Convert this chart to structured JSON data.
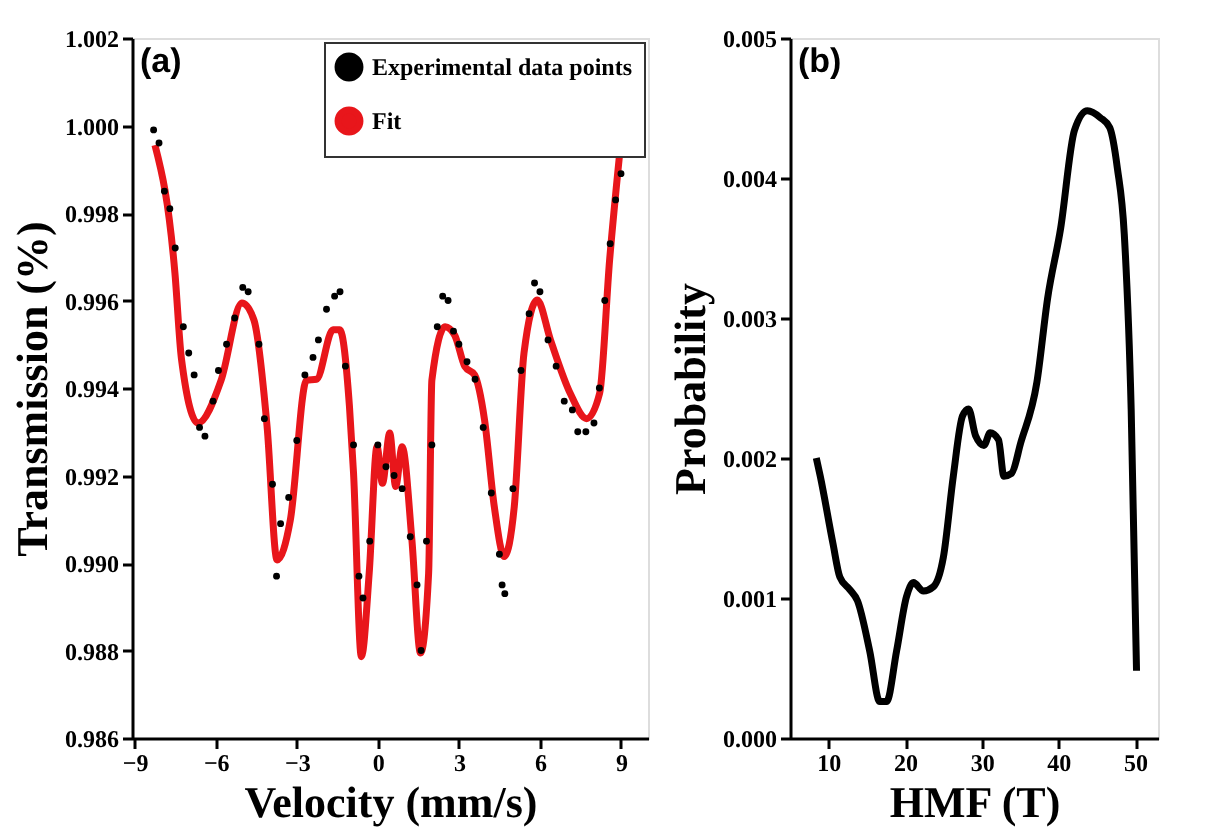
{
  "chart_data": [
    {
      "type": "line",
      "xlabel": "Velocity (mm/s)",
      "ylabel": "Transmission (%)",
      "annotations": [
        "(a)"
      ],
      "xlim": [
        -9.1,
        10
      ],
      "xticks": [
        -9,
        -6,
        -3,
        0,
        3,
        6,
        9
      ],
      "ylim": [
        0.986,
        1.002
      ],
      "yticks": [
        {
          "value": 0.986,
          "label": "0.986"
        },
        {
          "value": 0.988,
          "label": "0.988"
        },
        {
          "value": 0.99,
          "label": "0.990"
        },
        {
          "value": 0.992,
          "label": "0.992"
        },
        {
          "value": 0.994,
          "label": "0.994"
        },
        {
          "value": 0.996,
          "label": "0.996"
        },
        {
          "value": 0.998,
          "label": "0.998"
        },
        {
          "value": 1.0,
          "label": "1.000"
        },
        {
          "value": 1.002,
          "label": "1.002"
        }
      ],
      "grid": false,
      "legend": "top right",
      "series": [
        {
          "name": "Experimental data points",
          "type": "scatter",
          "marker": "circle",
          "color": "#000000",
          "x": [
            -8.3,
            -8.1,
            -7.9,
            -7.7,
            -7.5,
            -7.2,
            -7.0,
            -6.8,
            -6.6,
            -6.4,
            -6.1,
            -5.9,
            -5.6,
            -5.3,
            -5.0,
            -4.8,
            -4.4,
            -4.2,
            -3.9,
            -3.75,
            -3.6,
            -3.3,
            -3.0,
            -2.7,
            -2.4,
            -2.2,
            -1.9,
            -1.6,
            -1.4,
            -1.2,
            -0.9,
            -0.7,
            -0.55,
            -0.3,
            0,
            0.3,
            0.6,
            0.9,
            1.2,
            1.45,
            1.6,
            1.8,
            2.0,
            2.2,
            2.4,
            2.6,
            2.8,
            3.0,
            3.3,
            3.6,
            3.9,
            4.2,
            4.5,
            4.6,
            4.7,
            5.0,
            5.3,
            5.6,
            5.8,
            6.0,
            6.3,
            6.6,
            6.9,
            7.2,
            7.4,
            7.7,
            8.0,
            8.2,
            8.4,
            8.6,
            8.8,
            9.0
          ],
          "values": [
            0.9999,
            0.9996,
            0.9985,
            0.9981,
            0.9972,
            0.9954,
            0.9948,
            0.9943,
            0.9931,
            0.9929,
            0.9937,
            0.9944,
            0.995,
            0.9956,
            0.9963,
            0.9962,
            0.995,
            0.9933,
            0.9918,
            0.9897,
            0.9909,
            0.9915,
            0.9928,
            0.9943,
            0.9947,
            0.9951,
            0.9958,
            0.9961,
            0.9962,
            0.9945,
            0.9927,
            0.9897,
            0.9892,
            0.9905,
            0.9927,
            0.9922,
            0.992,
            0.9917,
            0.9906,
            0.9895,
            0.988,
            0.9905,
            0.9927,
            0.9954,
            0.9961,
            0.996,
            0.9953,
            0.995,
            0.9946,
            0.9942,
            0.9931,
            0.9916,
            0.9902,
            0.9895,
            0.9893,
            0.9917,
            0.9944,
            0.9957,
            0.9964,
            0.9962,
            0.9951,
            0.9945,
            0.9937,
            0.9935,
            0.993,
            0.993,
            0.9932,
            0.994,
            0.996,
            0.9973,
            0.9983,
            0.9989
          ]
        },
        {
          "name": "Fit",
          "color": "#e8161b",
          "x": [
            -8.25,
            -7.51,
            -7.27,
            -6.66,
            -5.8,
            -5.03,
            -4.59,
            -4.1,
            -3.73,
            -3.24,
            -2.64,
            -2.27,
            -1.66,
            -1.41,
            -1.05,
            -0.9,
            -0.61,
            -0.32,
            -0.03,
            0.17,
            0.44,
            0.66,
            0.9,
            1.26,
            1.58,
            1.88,
            2.0,
            2.49,
            2.85,
            3.22,
            3.58,
            3.95,
            4.31,
            4.68,
            5.05,
            5.41,
            5.9,
            6.39,
            7.12,
            7.73,
            8.21,
            8.58,
            8.94
          ],
          "values": [
            0.99955,
            0.99662,
            0.99467,
            0.9932,
            0.99418,
            0.99594,
            0.99556,
            0.99312,
            0.99007,
            0.99098,
            0.99418,
            0.9942,
            0.99533,
            0.99533,
            0.99357,
            0.99206,
            0.98786,
            0.98977,
            0.99266,
            0.99182,
            0.99297,
            0.99175,
            0.99266,
            0.99053,
            0.98794,
            0.98977,
            0.99418,
            0.9954,
            0.9952,
            0.99449,
            0.9943,
            0.99327,
            0.99129,
            0.99015,
            0.99129,
            0.9948,
            0.99601,
            0.9951,
            0.99388,
            0.9933,
            0.99388,
            0.99693,
            0.99929
          ]
        }
      ]
    },
    {
      "type": "line",
      "xlabel": "HMF (T)",
      "ylabel": "Probability",
      "annotations": [
        "(b)"
      ],
      "xlim": [
        5,
        53
      ],
      "xticks": [
        10,
        20,
        30,
        40,
        50
      ],
      "ylim": [
        0,
        0.005
      ],
      "yticks": [
        {
          "value": 0,
          "label": "0.000"
        },
        {
          "value": 0.001,
          "label": "0.001"
        },
        {
          "value": 0.002,
          "label": "0.002"
        },
        {
          "value": 0.003,
          "label": "0.003"
        },
        {
          "value": 0.004,
          "label": "0.004"
        },
        {
          "value": 0.005,
          "label": "0.005"
        }
      ],
      "grid": false,
      "series": [
        {
          "color": "#000000",
          "x": [
            8.43,
            8.95,
            10.6,
            11.5,
            12.8,
            13.8,
            15.4,
            16.7,
            17.6,
            18.9,
            20.2,
            21.1,
            22.4,
            23.7,
            25.0,
            26.3,
            27.5,
            28.3,
            29.2,
            30.3,
            31.1,
            32.2,
            32.9,
            33.9,
            35.1,
            37.2,
            38.6,
            40.3,
            42.1,
            43.8,
            45.5,
            46.7,
            47.7,
            48.6,
            49.5,
            50.2
          ],
          "values": [
            0.002,
            0.00187,
            0.00139,
            0.00115,
            0.00106,
            0.00098,
            0.00062,
            0.00026,
            0.00026,
            0.00062,
            0.00101,
            0.00111,
            0.00105,
            0.00108,
            0.00129,
            0.00187,
            0.0023,
            0.00235,
            0.00216,
            0.00209,
            0.00218,
            0.00213,
            0.00187,
            0.00189,
            0.00211,
            0.00254,
            0.00314,
            0.00364,
            0.00434,
            0.00448,
            0.00443,
            0.00436,
            0.00407,
            0.0036,
            0.00235,
            0.00048
          ]
        }
      ]
    }
  ]
}
